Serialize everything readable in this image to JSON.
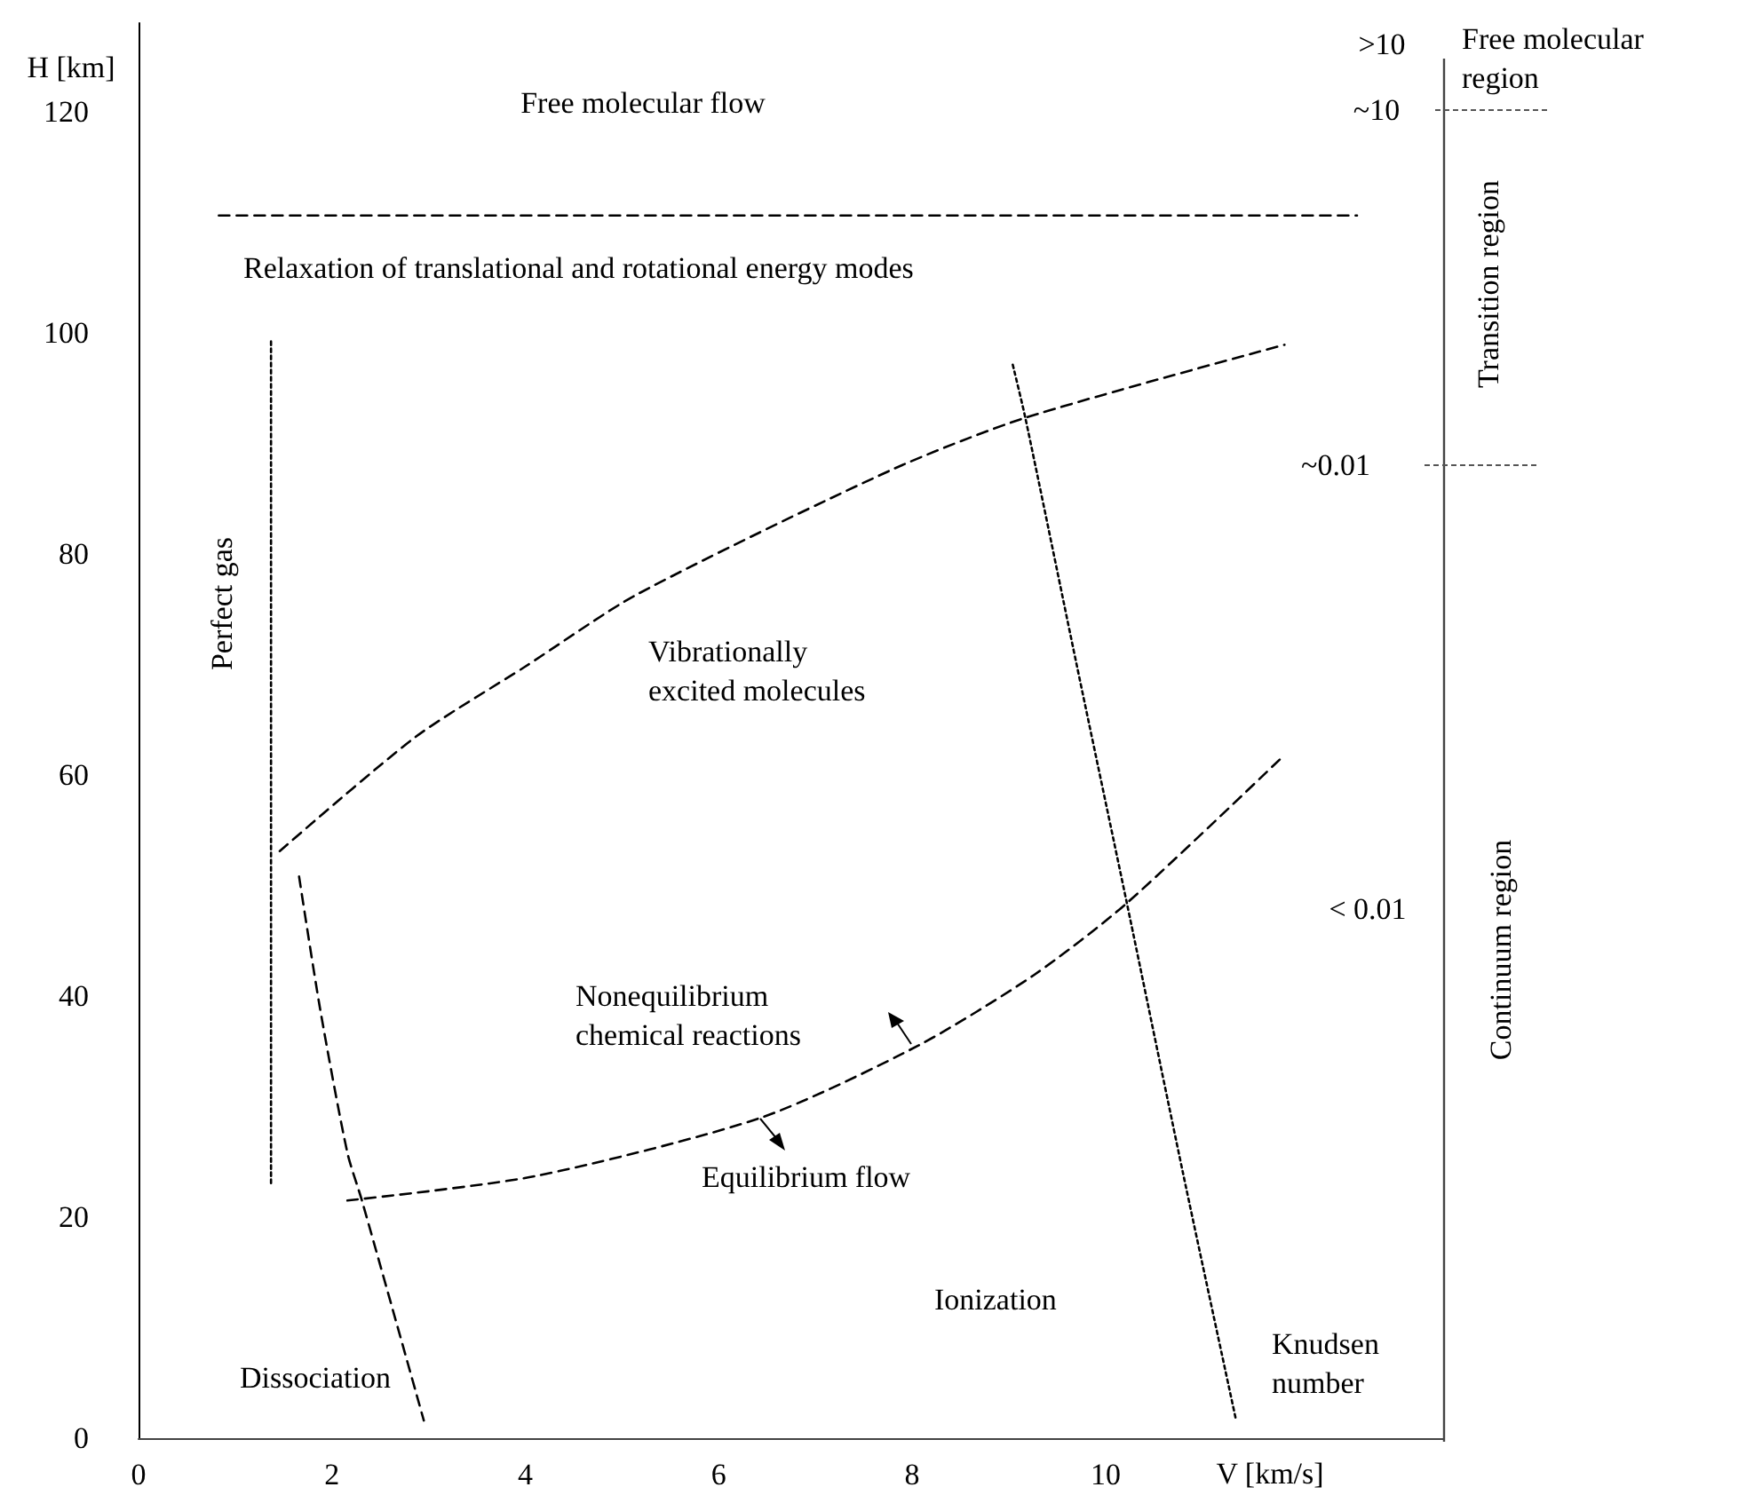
{
  "chart_data": {
    "type": "line",
    "xlabel": "V [km/s]",
    "ylabel": "H [km]",
    "xlim": [
      0,
      13.5
    ],
    "ylim": [
      0,
      128
    ],
    "xticks": [
      0,
      2,
      4,
      6,
      8,
      10
    ],
    "yticks": [
      0,
      20,
      40,
      60,
      80,
      100,
      120
    ],
    "grid": false,
    "marker": "none",
    "series": [
      {
        "color": "#000000",
        "line_style": "dashed",
        "x": [
          0.83,
          12.6
        ],
        "values": [
          110.6,
          110.6
        ]
      },
      {
        "color": "#000000",
        "line_style": "dotted",
        "x": [
          1.37,
          1.37
        ],
        "values": [
          99.2,
          22.9
        ]
      },
      {
        "color": "#000000",
        "line_style": "dashed",
        "x": [
          1.46,
          2.86,
          4.0,
          5.15,
          7.79,
          9.17,
          11.85
        ],
        "values": [
          53.1,
          63.4,
          69.8,
          76.3,
          87.6,
          92.3,
          98.9
        ]
      },
      {
        "color": "#000000",
        "line_style": "dotted",
        "x": [
          9.04,
          9.17,
          9.7,
          10.22,
          10.8,
          11.35
        ],
        "values": [
          97.1,
          92.3,
          70,
          48.4,
          24,
          1.6
        ]
      },
      {
        "color": "#000000",
        "line_style": "dashed",
        "x": [
          1.66,
          1.88,
          2.16,
          2.31,
          2.95
        ],
        "values": [
          50.8,
          38.7,
          25.8,
          21.5,
          1.6
        ]
      },
      {
        "color": "#000000",
        "line_style": "dashed",
        "x": [
          2.16,
          4.1,
          6.44,
          8.06,
          9.26,
          10.22,
          11.85
        ],
        "values": [
          21.5,
          23.7,
          29.0,
          35.5,
          41.9,
          48.4,
          61.8
        ]
      }
    ],
    "annotations": [
      "Free molecular flow",
      "Relaxation of translational and rotational energy modes",
      "Perfect gas",
      "Vibrationally\nexcited molecules",
      "Nonequilibrium\nchemical reactions",
      "Equilibrium flow",
      "Ionization",
      "Dissociation",
      "Knudsen\nnumber",
      ">10",
      "~10",
      "~0.01",
      "< 0.01",
      "Free molecular\nregion",
      "Transition region",
      "Continuum region"
    ]
  }
}
